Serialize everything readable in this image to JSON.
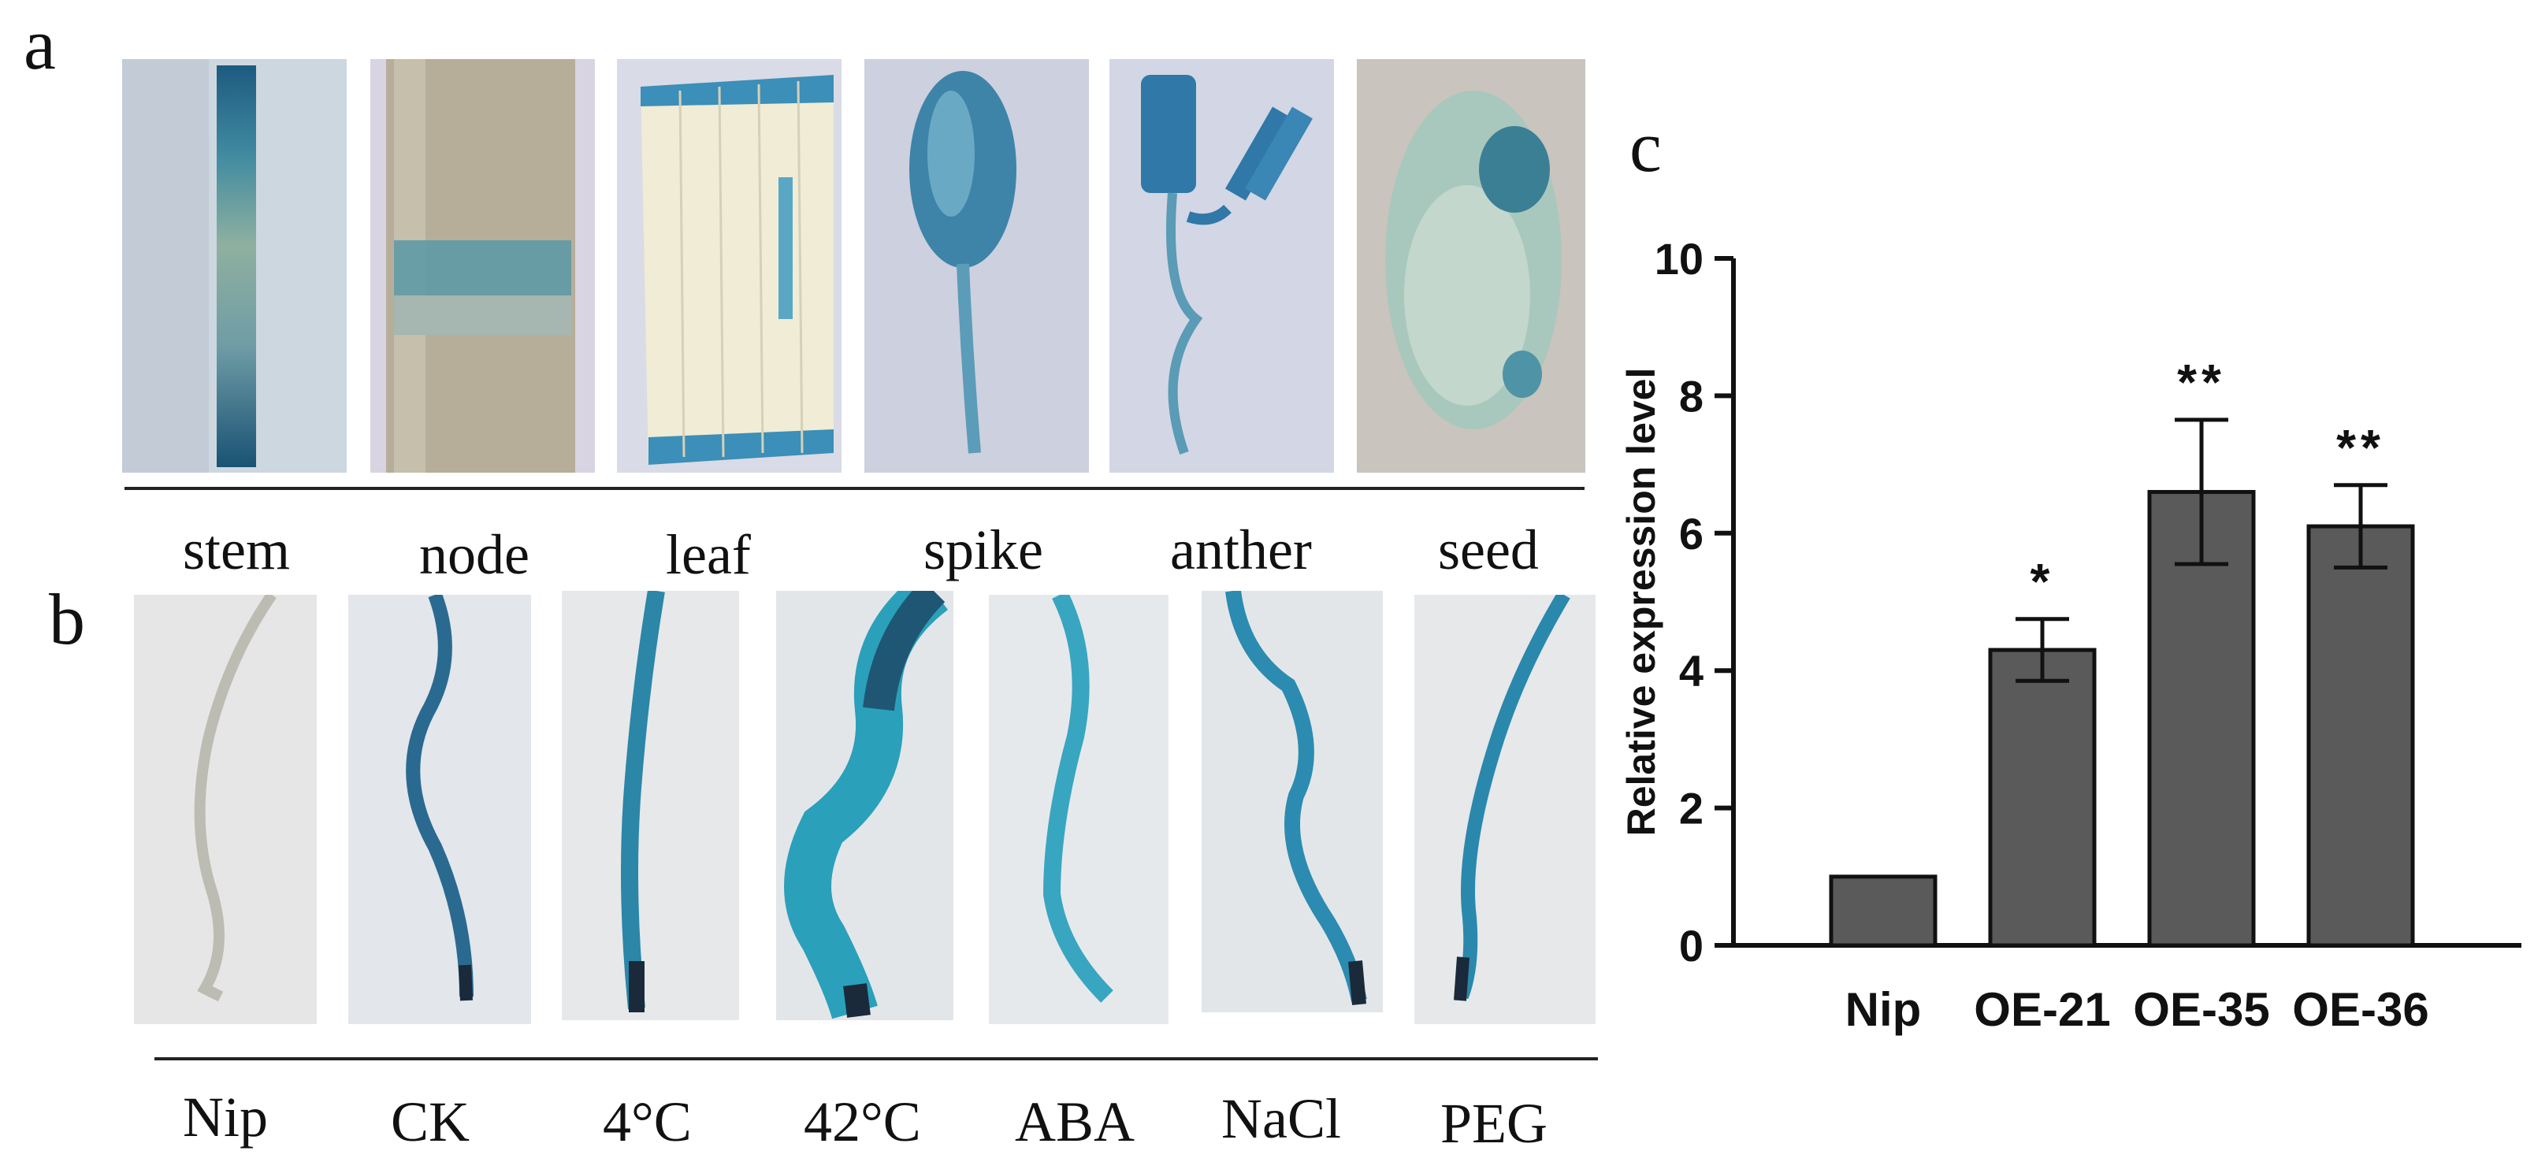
{
  "panels": {
    "a": {
      "letter": "a",
      "tissues": [
        "stem",
        "node",
        "leaf",
        "spike",
        "anther",
        "seed"
      ]
    },
    "b": {
      "letter": "b",
      "treatments": [
        "Nip",
        "CK",
        "4°C",
        "42°C",
        "ABA",
        "NaCl",
        "PEG"
      ]
    },
    "c": {
      "letter": "c"
    }
  },
  "colors": {
    "gus_blue": "#2f8ea6",
    "gus_dark": "#1f4f73",
    "bar_fill": "#5a5a5a"
  },
  "chart_data": {
    "type": "bar",
    "categories": [
      "Nip",
      "OE-21",
      "OE-35",
      "OE-36"
    ],
    "values": [
      1.0,
      4.3,
      6.6,
      6.1
    ],
    "errors": [
      0,
      0.45,
      1.05,
      0.6
    ],
    "significance": [
      "",
      "*",
      "**",
      "**"
    ],
    "ylabel": "Relative expression level",
    "xlabel": "",
    "ylim": [
      0,
      10
    ],
    "yticks": [
      0,
      2,
      4,
      6,
      8,
      10
    ],
    "grid": false,
    "legend": "none"
  }
}
